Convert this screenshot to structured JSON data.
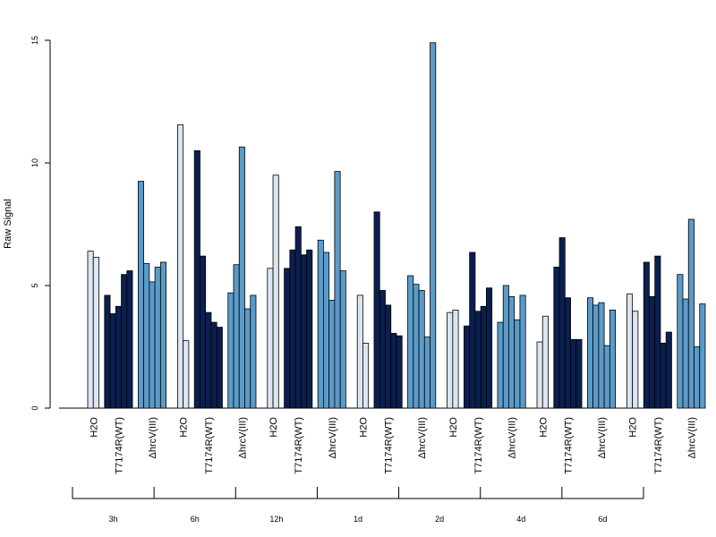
{
  "chart_data": {
    "type": "bar",
    "ylabel": "Raw Signal",
    "xlabel": "",
    "ylim": [
      0,
      15
    ],
    "yticks": [
      "0",
      "5",
      "10",
      "15"
    ],
    "group_labels": [
      "H2O",
      "T7174R(WT)",
      "ΔhrcV(III)"
    ],
    "group_colors": [
      "#dce6f2",
      "#0b1f4e",
      "#5b9bc9"
    ],
    "timepoints": [
      {
        "label": "3h",
        "groups": [
          [
            6.4,
            6.15
          ],
          [
            4.6,
            3.85,
            4.15,
            5.45,
            5.6
          ],
          [
            9.25,
            5.9,
            5.15,
            5.75,
            5.95
          ]
        ]
      },
      {
        "label": "6h",
        "groups": [
          [
            11.55,
            2.75
          ],
          [
            10.5,
            6.2,
            3.9,
            3.5,
            3.3
          ],
          [
            4.7,
            5.85,
            10.65,
            4.05,
            4.6
          ]
        ]
      },
      {
        "label": "12h",
        "groups": [
          [
            5.7,
            9.5
          ],
          [
            5.7,
            6.45,
            7.4,
            6.25,
            6.45
          ],
          [
            6.85,
            6.35,
            4.4,
            9.65,
            5.6
          ]
        ]
      },
      {
        "label": "1d",
        "groups": [
          [
            4.6,
            2.65
          ],
          [
            8.0,
            4.8,
            4.2,
            3.05,
            2.95
          ],
          [
            5.4,
            5.05,
            4.8,
            2.9,
            14.9
          ]
        ]
      },
      {
        "label": "2d",
        "groups": [
          [
            3.9,
            4.0
          ],
          [
            3.35,
            6.35,
            3.95,
            4.15,
            4.9
          ],
          [
            3.5,
            5.0,
            4.55,
            3.6,
            4.6
          ]
        ]
      },
      {
        "label": "4d",
        "groups": [
          [
            2.7,
            3.75
          ],
          [
            5.75,
            6.95,
            4.5,
            2.8,
            2.8
          ],
          [
            4.5,
            4.2,
            4.3,
            2.55,
            4.0
          ]
        ]
      },
      {
        "label": "6d",
        "groups": [
          [
            4.65,
            3.95
          ],
          [
            5.95,
            4.55,
            6.2,
            2.65,
            3.1
          ],
          [
            5.45,
            4.45,
            7.7,
            2.5,
            4.25
          ]
        ]
      }
    ]
  }
}
